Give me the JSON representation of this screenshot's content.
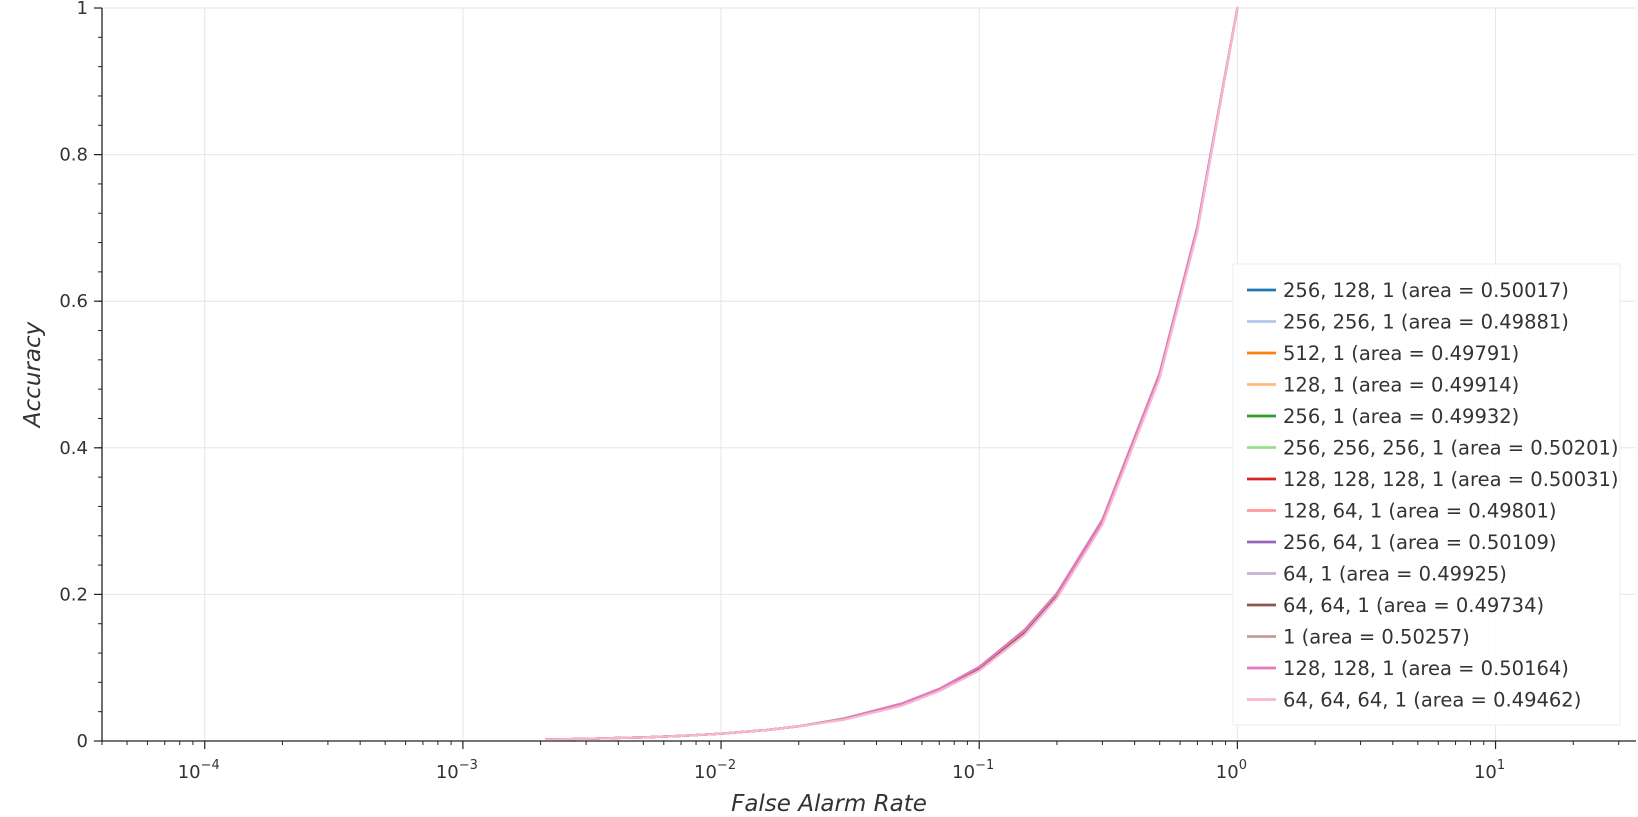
{
  "chart_data": {
    "type": "line",
    "title": "",
    "xlabel": "False Alarm Rate",
    "ylabel": "Accuracy",
    "xscale": "log",
    "xlim": [
      4e-05,
      35
    ],
    "ylim": [
      0,
      1
    ],
    "grid": true,
    "legend_position": "lower-right",
    "x_ticks": [
      0.0001,
      0.001,
      0.01,
      0.1,
      1,
      10
    ],
    "x_tick_labels": [
      {
        "base": "10",
        "exp": "−4"
      },
      {
        "base": "10",
        "exp": "−3"
      },
      {
        "base": "10",
        "exp": "−2"
      },
      {
        "base": "10",
        "exp": "−1"
      },
      {
        "base": "10",
        "exp": "0"
      },
      {
        "base": "10",
        "exp": "1"
      }
    ],
    "y_ticks": [
      0,
      0.2,
      0.4,
      0.6,
      0.8,
      1
    ],
    "y_tick_labels": [
      "0",
      "0.2",
      "0.4",
      "0.6",
      "0.8",
      "1"
    ],
    "x": [
      0.0021,
      0.003,
      0.005,
      0.007,
      0.01,
      0.015,
      0.02,
      0.03,
      0.05,
      0.07,
      0.1,
      0.15,
      0.2,
      0.3,
      0.5,
      0.7,
      1.0
    ],
    "series": [
      {
        "name": "256, 128, 1 (area = 0.50017)",
        "color": "#1f77b4",
        "values": [
          0.0021,
          0.003,
          0.005,
          0.007,
          0.01,
          0.015,
          0.02,
          0.03,
          0.05,
          0.07,
          0.1,
          0.15,
          0.2,
          0.3,
          0.5,
          0.7,
          1.0
        ]
      },
      {
        "name": "256, 256, 1 (area = 0.49881)",
        "color": "#aec7e8",
        "values": [
          0.0021,
          0.003,
          0.005,
          0.007,
          0.01,
          0.015,
          0.02,
          0.03,
          0.049,
          0.069,
          0.099,
          0.149,
          0.199,
          0.299,
          0.499,
          0.699,
          1.0
        ]
      },
      {
        "name": "512, 1 (area = 0.49791)",
        "color": "#ff7f0e",
        "values": [
          0.0021,
          0.003,
          0.005,
          0.007,
          0.01,
          0.015,
          0.02,
          0.03,
          0.049,
          0.069,
          0.098,
          0.148,
          0.198,
          0.298,
          0.498,
          0.698,
          1.0
        ]
      },
      {
        "name": "128, 1 (area = 0.49914)",
        "color": "#ffbb78",
        "values": [
          0.0021,
          0.003,
          0.005,
          0.007,
          0.01,
          0.015,
          0.02,
          0.03,
          0.05,
          0.07,
          0.099,
          0.149,
          0.199,
          0.299,
          0.499,
          0.699,
          1.0
        ]
      },
      {
        "name": "256, 1 (area = 0.49932)",
        "color": "#2ca02c",
        "values": [
          0.0021,
          0.003,
          0.005,
          0.007,
          0.01,
          0.015,
          0.02,
          0.03,
          0.05,
          0.07,
          0.099,
          0.149,
          0.199,
          0.299,
          0.499,
          0.699,
          1.0
        ]
      },
      {
        "name": "256, 256, 256, 1 (area = 0.50201)",
        "color": "#98df8a",
        "values": [
          0.0021,
          0.003,
          0.005,
          0.007,
          0.01,
          0.015,
          0.02,
          0.031,
          0.051,
          0.071,
          0.101,
          0.151,
          0.201,
          0.302,
          0.502,
          0.702,
          1.0
        ]
      },
      {
        "name": "128, 128, 128, 1 (area = 0.50031)",
        "color": "#d62728",
        "values": [
          0.0021,
          0.003,
          0.005,
          0.007,
          0.01,
          0.015,
          0.02,
          0.03,
          0.05,
          0.07,
          0.1,
          0.15,
          0.2,
          0.3,
          0.5,
          0.7,
          1.0
        ]
      },
      {
        "name": "128, 64, 1 (area = 0.49801)",
        "color": "#ff9896",
        "values": [
          0.0021,
          0.003,
          0.005,
          0.007,
          0.01,
          0.015,
          0.02,
          0.03,
          0.049,
          0.069,
          0.098,
          0.148,
          0.198,
          0.298,
          0.498,
          0.698,
          1.0
        ]
      },
      {
        "name": "256, 64, 1 (area = 0.50109)",
        "color": "#9467bd",
        "values": [
          0.0021,
          0.003,
          0.005,
          0.007,
          0.01,
          0.015,
          0.02,
          0.03,
          0.05,
          0.07,
          0.1,
          0.15,
          0.201,
          0.301,
          0.501,
          0.701,
          1.0
        ]
      },
      {
        "name": "64, 1 (area = 0.49925)",
        "color": "#c5b0d5",
        "values": [
          0.0021,
          0.003,
          0.005,
          0.007,
          0.01,
          0.015,
          0.02,
          0.03,
          0.05,
          0.07,
          0.099,
          0.149,
          0.199,
          0.299,
          0.499,
          0.699,
          1.0
        ]
      },
      {
        "name": "64, 64, 1 (area = 0.49734)",
        "color": "#8c564b",
        "values": [
          0.0021,
          0.003,
          0.005,
          0.007,
          0.01,
          0.015,
          0.02,
          0.03,
          0.049,
          0.069,
          0.098,
          0.147,
          0.197,
          0.297,
          0.497,
          0.697,
          1.0
        ]
      },
      {
        "name": "1 (area = 0.50257)",
        "color": "#c49c94",
        "values": [
          0.0021,
          0.003,
          0.005,
          0.007,
          0.01,
          0.015,
          0.02,
          0.031,
          0.051,
          0.071,
          0.101,
          0.152,
          0.202,
          0.302,
          0.502,
          0.702,
          1.0
        ]
      },
      {
        "name": "128, 128, 1 (area = 0.50164)",
        "color": "#e377c2",
        "values": [
          0.0021,
          0.003,
          0.005,
          0.007,
          0.01,
          0.015,
          0.02,
          0.03,
          0.051,
          0.071,
          0.101,
          0.151,
          0.201,
          0.301,
          0.501,
          0.701,
          1.0
        ]
      },
      {
        "name": "64, 64, 64, 1 (area = 0.49462)",
        "color": "#f7b6d2",
        "values": [
          0.0021,
          0.003,
          0.005,
          0.007,
          0.01,
          0.015,
          0.02,
          0.029,
          0.048,
          0.068,
          0.096,
          0.145,
          0.195,
          0.295,
          0.495,
          0.695,
          1.0
        ]
      }
    ]
  }
}
